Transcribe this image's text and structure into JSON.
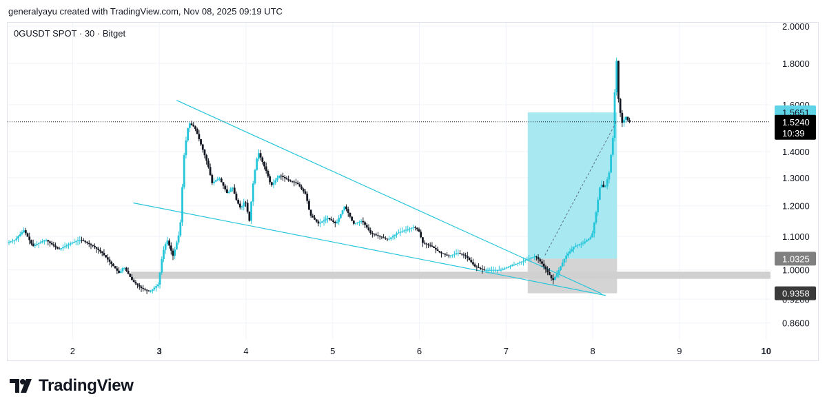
{
  "header": {
    "credit": "generalyayu created with TradingView.com, Nov 08, 2025 09:19 UTC"
  },
  "chart_data": {
    "type": "candlestick",
    "title": "0GUSDT SPOT · 30 · Bitget",
    "symbol": "0GUSDT",
    "timeframe": "30",
    "exchange": "Bitget",
    "x_ticks": [
      {
        "label": "2",
        "x": 2,
        "bold": false
      },
      {
        "label": "3",
        "x": 3,
        "bold": true
      },
      {
        "label": "4",
        "x": 4,
        "bold": false
      },
      {
        "label": "5",
        "x": 5,
        "bold": false
      },
      {
        "label": "6",
        "x": 6,
        "bold": false
      },
      {
        "label": "7",
        "x": 7,
        "bold": false
      },
      {
        "label": "8",
        "x": 8,
        "bold": false
      },
      {
        "label": "9",
        "x": 9,
        "bold": false
      },
      {
        "label": "10",
        "x": 10,
        "bold": true
      }
    ],
    "xlim": [
      1.25,
      10.05
    ],
    "y_ticks": [
      "2.0000",
      "1.8000",
      "1.6000",
      "1.4000",
      "1.3000",
      "1.2000",
      "1.1000",
      "1.0000",
      "0.9200",
      "0.8600"
    ],
    "ylim": [
      0.82,
      2.02
    ],
    "y_scale": "log",
    "grid": true,
    "price_path": [
      [
        1.25,
        1.08
      ],
      [
        1.35,
        1.09
      ],
      [
        1.45,
        1.12
      ],
      [
        1.55,
        1.07
      ],
      [
        1.7,
        1.09
      ],
      [
        1.85,
        1.06
      ],
      [
        2.0,
        1.08
      ],
      [
        2.1,
        1.09
      ],
      [
        2.25,
        1.07
      ],
      [
        2.35,
        1.05
      ],
      [
        2.45,
        1.02
      ],
      [
        2.55,
        0.99
      ],
      [
        2.6,
        1.01
      ],
      [
        2.7,
        0.97
      ],
      [
        2.8,
        0.95
      ],
      [
        2.9,
        0.94
      ],
      [
        3.0,
        0.96
      ],
      [
        3.05,
        1.05
      ],
      [
        3.1,
        1.09
      ],
      [
        3.17,
        1.04
      ],
      [
        3.25,
        1.12
      ],
      [
        3.3,
        1.4
      ],
      [
        3.35,
        1.52
      ],
      [
        3.42,
        1.5
      ],
      [
        3.5,
        1.42
      ],
      [
        3.57,
        1.35
      ],
      [
        3.62,
        1.28
      ],
      [
        3.7,
        1.3
      ],
      [
        3.8,
        1.24
      ],
      [
        3.85,
        1.27
      ],
      [
        3.9,
        1.22
      ],
      [
        3.95,
        1.19
      ],
      [
        4.0,
        1.22
      ],
      [
        4.05,
        1.15
      ],
      [
        4.1,
        1.3
      ],
      [
        4.15,
        1.4
      ],
      [
        4.25,
        1.32
      ],
      [
        4.3,
        1.27
      ],
      [
        4.4,
        1.31
      ],
      [
        4.5,
        1.29
      ],
      [
        4.6,
        1.28
      ],
      [
        4.7,
        1.24
      ],
      [
        4.75,
        1.17
      ],
      [
        4.85,
        1.14
      ],
      [
        4.95,
        1.16
      ],
      [
        5.05,
        1.14
      ],
      [
        5.15,
        1.2
      ],
      [
        5.25,
        1.14
      ],
      [
        5.35,
        1.15
      ],
      [
        5.45,
        1.11
      ],
      [
        5.55,
        1.1
      ],
      [
        5.65,
        1.09
      ],
      [
        5.75,
        1.11
      ],
      [
        5.85,
        1.12
      ],
      [
        5.95,
        1.13
      ],
      [
        6.0,
        1.12
      ],
      [
        6.05,
        1.08
      ],
      [
        6.15,
        1.07
      ],
      [
        6.25,
        1.05
      ],
      [
        6.35,
        1.04
      ],
      [
        6.45,
        1.05
      ],
      [
        6.55,
        1.04
      ],
      [
        6.65,
        1.01
      ],
      [
        6.75,
        1.0
      ],
      [
        6.85,
        1.0
      ],
      [
        6.95,
        1.0
      ],
      [
        7.05,
        1.01
      ],
      [
        7.15,
        1.02
      ],
      [
        7.25,
        1.03
      ],
      [
        7.35,
        1.04
      ],
      [
        7.42,
        1.02
      ],
      [
        7.5,
        0.99
      ],
      [
        7.55,
        0.97
      ],
      [
        7.6,
        0.99
      ],
      [
        7.7,
        1.04
      ],
      [
        7.8,
        1.07
      ],
      [
        7.9,
        1.08
      ],
      [
        8.0,
        1.1
      ],
      [
        8.05,
        1.18
      ],
      [
        8.1,
        1.28
      ],
      [
        8.15,
        1.26
      ],
      [
        8.2,
        1.32
      ],
      [
        8.25,
        1.48
      ],
      [
        8.28,
        1.86
      ],
      [
        8.31,
        1.6
      ],
      [
        8.35,
        1.52
      ],
      [
        8.4,
        1.55
      ],
      [
        8.42,
        1.524
      ]
    ],
    "trendlines": [
      {
        "name": "falling-wedge-upper",
        "from": [
          3.2,
          1.62
        ],
        "to": [
          8.1,
          0.935
        ]
      },
      {
        "name": "falling-wedge-lower",
        "from": [
          2.7,
          1.21
        ],
        "to": [
          8.15,
          0.93
        ]
      }
    ],
    "support_zone": {
      "from": 0.975,
      "to": 0.995
    },
    "position": {
      "entry_x": 7.25,
      "exit_x": 8.28,
      "entry": 1.0325,
      "target": 1.5651,
      "stop": 0.9358,
      "target_color": "#9ee5ef",
      "stop_color": "#cfcfcf"
    },
    "current_price": {
      "price": "1.5240",
      "countdown": "10:39",
      "value": 1.524
    },
    "price_labels": [
      {
        "text": "1.5651",
        "value": 1.5651,
        "bg": "#5ed4e6",
        "fg": "#131722"
      },
      {
        "text": "1.0325",
        "value": 1.0325,
        "bg": "#808080",
        "fg": "#ffffff"
      },
      {
        "text": "0.9358",
        "value": 0.9358,
        "bg": "#3a3a3a",
        "fg": "#ffffff"
      }
    ],
    "colors": {
      "candle": "#131722",
      "bull": "#26c6da",
      "wedge": "#26c6da",
      "grid": "#f0f3fa"
    }
  },
  "footer": {
    "brand": "TradingView"
  }
}
